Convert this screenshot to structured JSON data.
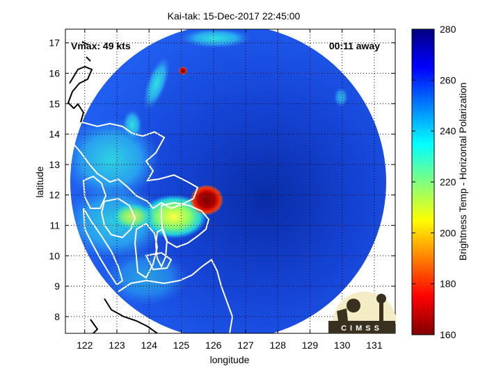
{
  "chart_data": {
    "type": "heatmap",
    "title": "Kai-tak: 15-Dec-2017 22:45:00",
    "xlabel": "longitude",
    "ylabel": "latitude",
    "xlim": [
      121.4,
      131.65
    ],
    "ylim": [
      7.45,
      17.45
    ],
    "xticks": [
      122,
      123,
      124,
      125,
      126,
      127,
      128,
      129,
      130,
      131
    ],
    "yticks": [
      8,
      9,
      10,
      11,
      12,
      13,
      14,
      15,
      16,
      17
    ],
    "grid": true,
    "colorbar": {
      "label": "Brightness Temp - Horizontal Polarization",
      "min": 160,
      "max": 280,
      "ticks": [
        160,
        180,
        200,
        220,
        240,
        260,
        280
      ]
    },
    "annotations": {
      "vmax": "Vmax: 49 kts",
      "time_away": "00:11 away",
      "logo": "CIMSS"
    },
    "swath": {
      "center_lon": 126.4,
      "center_lat": 12.4,
      "radius_deg_lat": 4.85
    },
    "features": [
      {
        "name": "storm-core",
        "lon": 126.0,
        "lat": 11.75,
        "value": 165
      },
      {
        "name": "convective-cell",
        "lon": 125.05,
        "lat": 16.1,
        "value": 175
      },
      {
        "name": "samar-warm-land",
        "lon": 124.7,
        "lat": 11.2,
        "value": 205
      }
    ]
  }
}
